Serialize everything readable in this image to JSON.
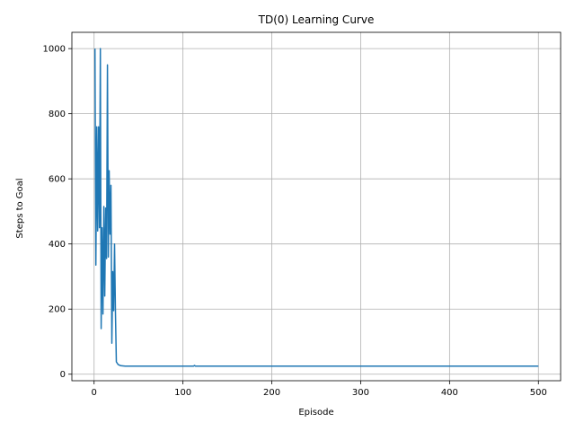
{
  "chart_data": {
    "type": "line",
    "title": "TD(0) Learning Curve",
    "xlabel": "Episode",
    "ylabel": "Steps to Goal",
    "xlim": [
      -25,
      525
    ],
    "ylim": [
      -20,
      1050
    ],
    "xticks": [
      0,
      100,
      200,
      300,
      400,
      500
    ],
    "yticks": [
      0,
      200,
      400,
      600,
      800,
      1000
    ],
    "grid": true,
    "series_color": "#1f77b4",
    "series": [
      {
        "points": [
          [
            1,
            1000
          ],
          [
            2,
            335
          ],
          [
            3,
            760
          ],
          [
            4,
            440
          ],
          [
            5,
            760
          ],
          [
            6,
            450
          ],
          [
            7,
            1000
          ],
          [
            8,
            140
          ],
          [
            9,
            450
          ],
          [
            10,
            185
          ],
          [
            11,
            515
          ],
          [
            12,
            240
          ],
          [
            13,
            510
          ],
          [
            14,
            355
          ],
          [
            15,
            950
          ],
          [
            16,
            360
          ],
          [
            17,
            625
          ],
          [
            18,
            430
          ],
          [
            19,
            580
          ],
          [
            20,
            95
          ],
          [
            21,
            315
          ],
          [
            22,
            195
          ],
          [
            23,
            400
          ],
          [
            24,
            190
          ],
          [
            25,
            38
          ],
          [
            27,
            30
          ],
          [
            30,
            26
          ],
          [
            35,
            25
          ],
          [
            60,
            25
          ],
          [
            100,
            25
          ],
          [
            112,
            25
          ],
          [
            113,
            27
          ],
          [
            114,
            25
          ],
          [
            150,
            25
          ],
          [
            200,
            25
          ],
          [
            300,
            25
          ],
          [
            400,
            25
          ],
          [
            500,
            25
          ]
        ]
      }
    ]
  }
}
